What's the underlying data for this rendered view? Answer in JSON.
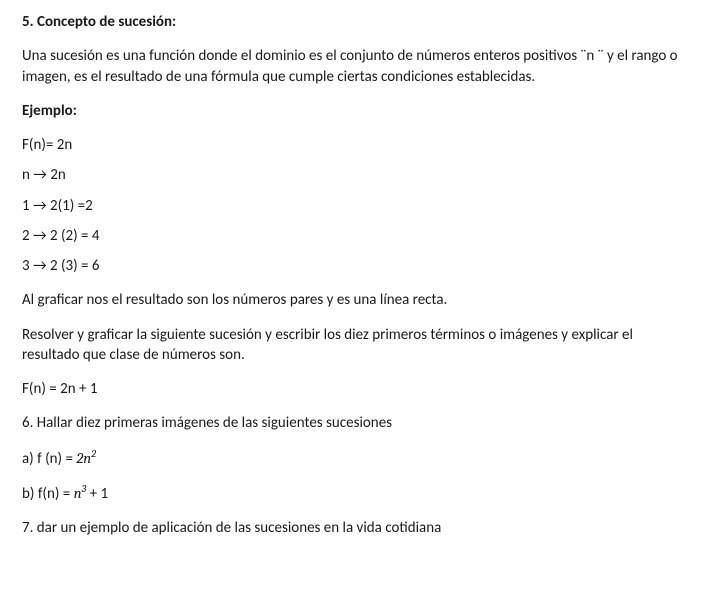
{
  "heading5": "5. Concepto de sucesión:",
  "intro": "Una sucesión es una función donde el dominio es el conjunto de números enteros positivos  ¨n ¨  y el rango o imagen, es  el resultado de  una fórmula que cumple ciertas condiciones establecidas.",
  "ejemploLabel": "Ejemplo:",
  "fn2n": "F(n)= 2n",
  "rowHeader": "n    →   2n",
  "row1": "1 →     2(1) =2",
  "row2": "2  →    2 (2) = 4",
  "row3": "3   →   2 (3) = 6",
  "graficar": "Al graficar nos el resultado  son los números pares y es una línea recta.",
  "resolver": "Resolver  y graficar la siguiente sucesión y escribir los diez primeros términos o imágenes y explicar el resultado que clase de números son.",
  "fn2n1": "F(n) = 2n + 1",
  "heading6": "6. Hallar diez primeras imágenes  de las siguientes sucesiones",
  "item_a_prefix": "a) f (n) = ",
  "item_a_math_base": "2n",
  "item_a_math_sup": "2",
  "item_b_prefix": "b) f(n) = ",
  "item_b_math_base": "n",
  "item_b_math_sup": "3",
  "item_b_suffix": "  + 1",
  "heading7": "7. dar un ejemplo de aplicación de las sucesiones en la vida cotidiana"
}
